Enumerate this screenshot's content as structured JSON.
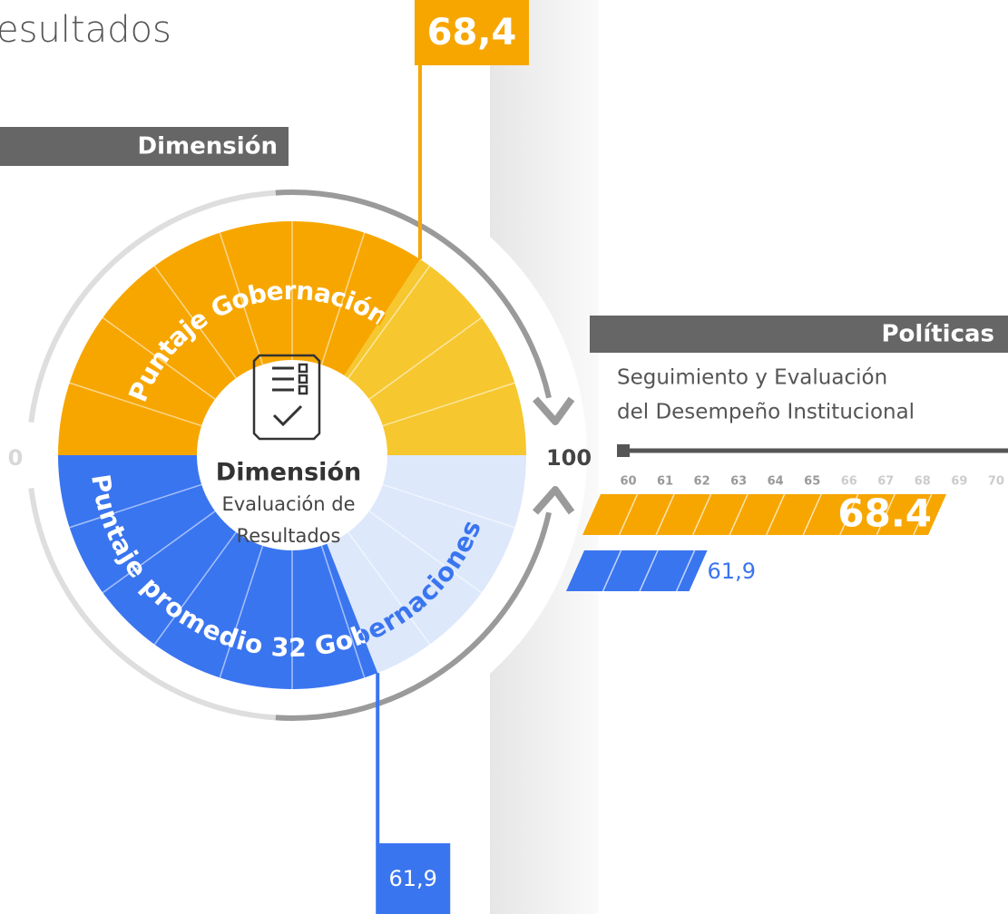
{
  "header": {
    "title": "Resultados"
  },
  "chart_data": [
    {
      "type": "gauge",
      "section": "Dimensión",
      "title": "Dimensión",
      "subtitle": [
        "Evaluación de",
        "Resultados"
      ],
      "ylim": [
        0,
        100
      ],
      "yticks": [
        0,
        100
      ],
      "series": [
        {
          "name": "Puntaje Gobernación",
          "color": "#f7a600",
          "values": [
            68.4
          ],
          "value_labels": [
            "68,4"
          ]
        },
        {
          "name": "Puntaje promedio 32 Gobernaciones",
          "color": "#3a75f0",
          "values": [
            61.9
          ],
          "value_labels": [
            "61,9"
          ]
        }
      ]
    },
    {
      "type": "bar",
      "title": "Políticas",
      "subtitle": [
        "Seguimiento y Evaluación",
        "del Desempeño Institucional"
      ],
      "xlim": [
        59,
        70.2
      ],
      "xticks": [
        60,
        61,
        62,
        63,
        64,
        65,
        66,
        67,
        68,
        69,
        70
      ],
      "series": [
        {
          "color": "#f7a600",
          "values": [
            68.4
          ],
          "value_labels": [
            "68.4"
          ]
        },
        {
          "color": "#3a75f0",
          "values": [
            61.9
          ],
          "value_labels": [
            "61,9"
          ]
        }
      ]
    }
  ]
}
